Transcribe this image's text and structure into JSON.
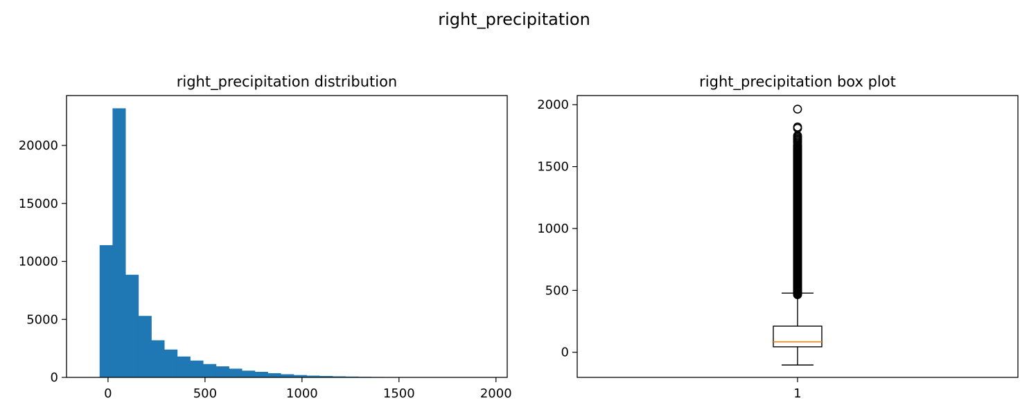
{
  "figure": {
    "title": "right_precipitation"
  },
  "colors": {
    "bar": "#1f77b4",
    "median": "#ff7f0e",
    "frame": "#000000"
  },
  "chart_data": [
    {
      "type": "bar",
      "title": "right_precipitation distribution",
      "xlabel": "",
      "ylabel": "",
      "bin_start": -43.4,
      "bin_width": 66.7,
      "values": [
        11400,
        23200,
        8850,
        5300,
        3200,
        2400,
        1800,
        1450,
        1150,
        950,
        750,
        580,
        480,
        360,
        270,
        200,
        150,
        120,
        90,
        70,
        50,
        35,
        25,
        18,
        12,
        8,
        6,
        4,
        3,
        2
      ],
      "xlim": [
        -214,
        2058
      ],
      "ylim": [
        0,
        24300
      ],
      "xticks": [
        0,
        500,
        1000,
        1500,
        2000
      ],
      "xtick_labels": [
        "0",
        "500",
        "1000",
        "1500",
        "2000"
      ],
      "yticks": [
        0,
        5000,
        10000,
        15000,
        20000
      ],
      "ytick_labels": [
        "0",
        "5000",
        "10000",
        "15000",
        "20000"
      ],
      "grid": false
    },
    {
      "type": "box",
      "title": "right_precipitation box plot",
      "xlabel": "",
      "ylabel": "",
      "category": "1",
      "whisker_low": -103,
      "q1": 44,
      "median": 84,
      "q3": 211,
      "whisker_high": 478,
      "outliers_range": [
        465,
        1675
      ],
      "outliers": [
        1690,
        1700,
        1710,
        1720,
        1730,
        1740,
        1750,
        1810,
        1820,
        1964
      ],
      "xlim": [
        0.5,
        1.5
      ],
      "ylim": [
        -203,
        2074
      ],
      "yticks": [
        0,
        500,
        1000,
        1500,
        2000
      ],
      "ytick_labels": [
        "0",
        "500",
        "1000",
        "1500",
        "2000"
      ],
      "xtick_labels": [
        "1"
      ],
      "grid": false
    }
  ]
}
